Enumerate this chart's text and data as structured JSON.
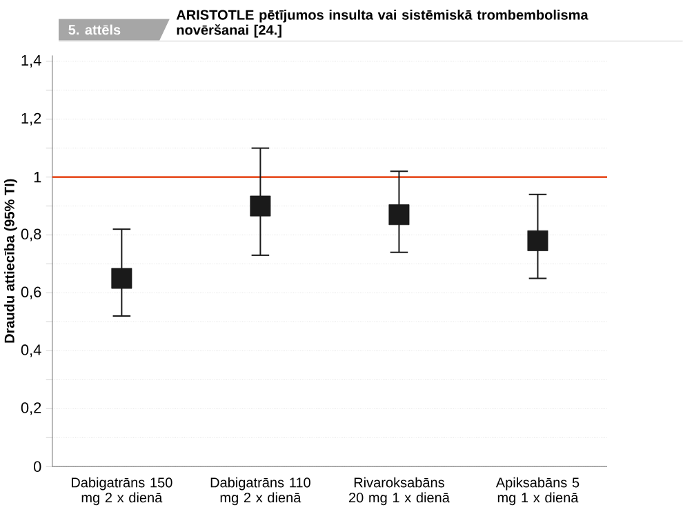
{
  "chart_data": {
    "type": "scatter",
    "title": "ARISTOTLE pētījumos insulta vai sistēmiskā trombembolisma novēršanai [24.]",
    "ylabel": "Draudu attiecība (95% TI)",
    "annotations": [
      "5. attēls"
    ],
    "categories": [
      "Dabigatrāns 150 mg 2 x dienā",
      "Dabigatrāns 110 mg 2 x dienā",
      "Rivaroksabāns 20 mg 1 x dienā",
      "Apiksabāns 5 mg 1 x dienā"
    ],
    "series": [
      {
        "color": "#1a1a1a",
        "values": [
          0.65,
          0.9,
          0.87,
          0.78
        ],
        "errors": [
          [
            0.52,
            0.82
          ],
          [
            0.73,
            1.1
          ],
          [
            0.74,
            1.02
          ],
          [
            0.65,
            0.94
          ]
        ]
      }
    ],
    "ylim": [
      0,
      1.42
    ],
    "yticks": [
      0,
      {
        "value": 0.1,
        "label": null
      },
      {
        "value": 0.2,
        "label": "0,2"
      },
      {
        "value": 0.3,
        "label": null
      },
      {
        "value": 0.4,
        "label": "0,4"
      },
      {
        "value": 0.5,
        "label": null
      },
      {
        "value": 0.6,
        "label": "0,6"
      },
      {
        "value": 0.7,
        "label": null
      },
      {
        "value": 0.8,
        "label": "0,8"
      },
      {
        "value": 0.9,
        "label": null
      },
      1,
      {
        "value": 1.1,
        "label": null
      },
      {
        "value": 1.2,
        "label": "1,2"
      },
      {
        "value": 1.3,
        "label": null
      },
      {
        "value": 1.4,
        "label": "1,4"
      }
    ],
    "grid": "y",
    "marker": "square",
    "ref_lines": [
      {
        "axis": "y",
        "value": 1,
        "color": "#e8552a"
      }
    ]
  }
}
